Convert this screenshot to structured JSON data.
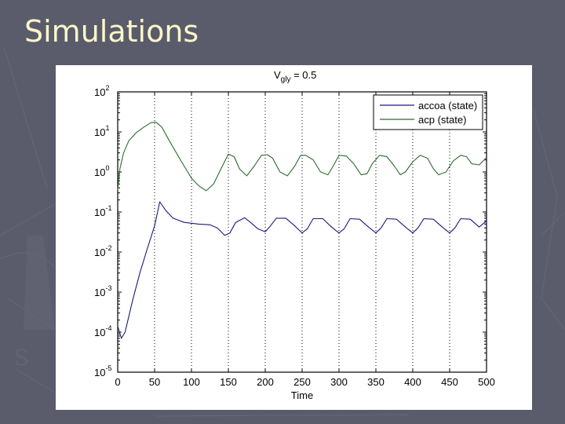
{
  "slide": {
    "title": "Simulations",
    "background_color": "#5a5c6b",
    "title_color": "#fbf6c9"
  },
  "chart_data": {
    "type": "line",
    "title": "V_gly = 0.5",
    "title_main": "V",
    "title_sub": "gly",
    "title_rest": " = 0.5",
    "xlabel": "Time",
    "ylabel": "",
    "xlim": [
      0,
      500
    ],
    "ylim": [
      1e-05,
      100
    ],
    "yscale": "log",
    "grid": "vertical dotted at x ticks",
    "legend_position": "upper right",
    "x_ticks": [
      "0",
      "50",
      "100",
      "150",
      "200",
      "250",
      "300",
      "350",
      "400",
      "450",
      "500"
    ],
    "y_ticks": [
      {
        "base": "10",
        "exp": "2"
      },
      {
        "base": "10",
        "exp": "1"
      },
      {
        "base": "10",
        "exp": "0"
      },
      {
        "base": "10",
        "exp": "-1"
      },
      {
        "base": "10",
        "exp": "-2"
      },
      {
        "base": "10",
        "exp": "-3"
      },
      {
        "base": "10",
        "exp": "-4"
      },
      {
        "base": "10",
        "exp": "-5"
      }
    ],
    "series": [
      {
        "name": "accoa (state)",
        "color": "#1a1a7a",
        "x": [
          0,
          5,
          10,
          20,
          30,
          40,
          50,
          57,
          65,
          75,
          90,
          110,
          125,
          135,
          145,
          152,
          160,
          172,
          180,
          190,
          200,
          207,
          215,
          228,
          240,
          250,
          257,
          265,
          278,
          290,
          300,
          307,
          315,
          328,
          340,
          350,
          357,
          365,
          378,
          390,
          400,
          407,
          415,
          428,
          440,
          450,
          457,
          465,
          478,
          490,
          500
        ],
        "y": [
          0.00014,
          7e-05,
          0.0001,
          0.0006,
          0.003,
          0.012,
          0.045,
          0.18,
          0.11,
          0.07,
          0.055,
          0.05,
          0.048,
          0.04,
          0.026,
          0.03,
          0.055,
          0.072,
          0.055,
          0.038,
          0.032,
          0.045,
          0.07,
          0.07,
          0.045,
          0.03,
          0.038,
          0.068,
          0.068,
          0.042,
          0.03,
          0.038,
          0.068,
          0.066,
          0.042,
          0.03,
          0.04,
          0.068,
          0.066,
          0.042,
          0.03,
          0.04,
          0.068,
          0.066,
          0.042,
          0.03,
          0.04,
          0.068,
          0.066,
          0.042,
          0.06
        ]
      },
      {
        "name": "acp (state)",
        "color": "#2d6b2d",
        "x": [
          0,
          3,
          8,
          15,
          25,
          35,
          45,
          52,
          60,
          70,
          85,
          100,
          110,
          120,
          130,
          140,
          150,
          158,
          165,
          175,
          185,
          195,
          203,
          210,
          220,
          230,
          240,
          248,
          255,
          265,
          275,
          285,
          293,
          300,
          310,
          320,
          330,
          338,
          345,
          355,
          365,
          375,
          383,
          390,
          400,
          410,
          420,
          428,
          435,
          445,
          455,
          465,
          473,
          480,
          490,
          500
        ],
        "y": [
          0.35,
          1.2,
          3,
          6,
          9.5,
          13,
          17,
          17.5,
          13,
          6,
          2,
          0.7,
          0.45,
          0.34,
          0.5,
          1.2,
          2.8,
          2.4,
          1.2,
          0.8,
          1.4,
          2.6,
          2.7,
          2.2,
          1.0,
          0.8,
          1.4,
          2.6,
          2.6,
          2.0,
          1.0,
          0.85,
          1.5,
          2.6,
          2.5,
          1.6,
          0.85,
          0.9,
          1.6,
          2.6,
          2.4,
          1.4,
          0.85,
          1.0,
          1.8,
          2.6,
          2.2,
          1.2,
          0.85,
          1.0,
          1.9,
          2.6,
          2.4,
          1.6,
          1.5,
          2.3
        ]
      }
    ]
  }
}
